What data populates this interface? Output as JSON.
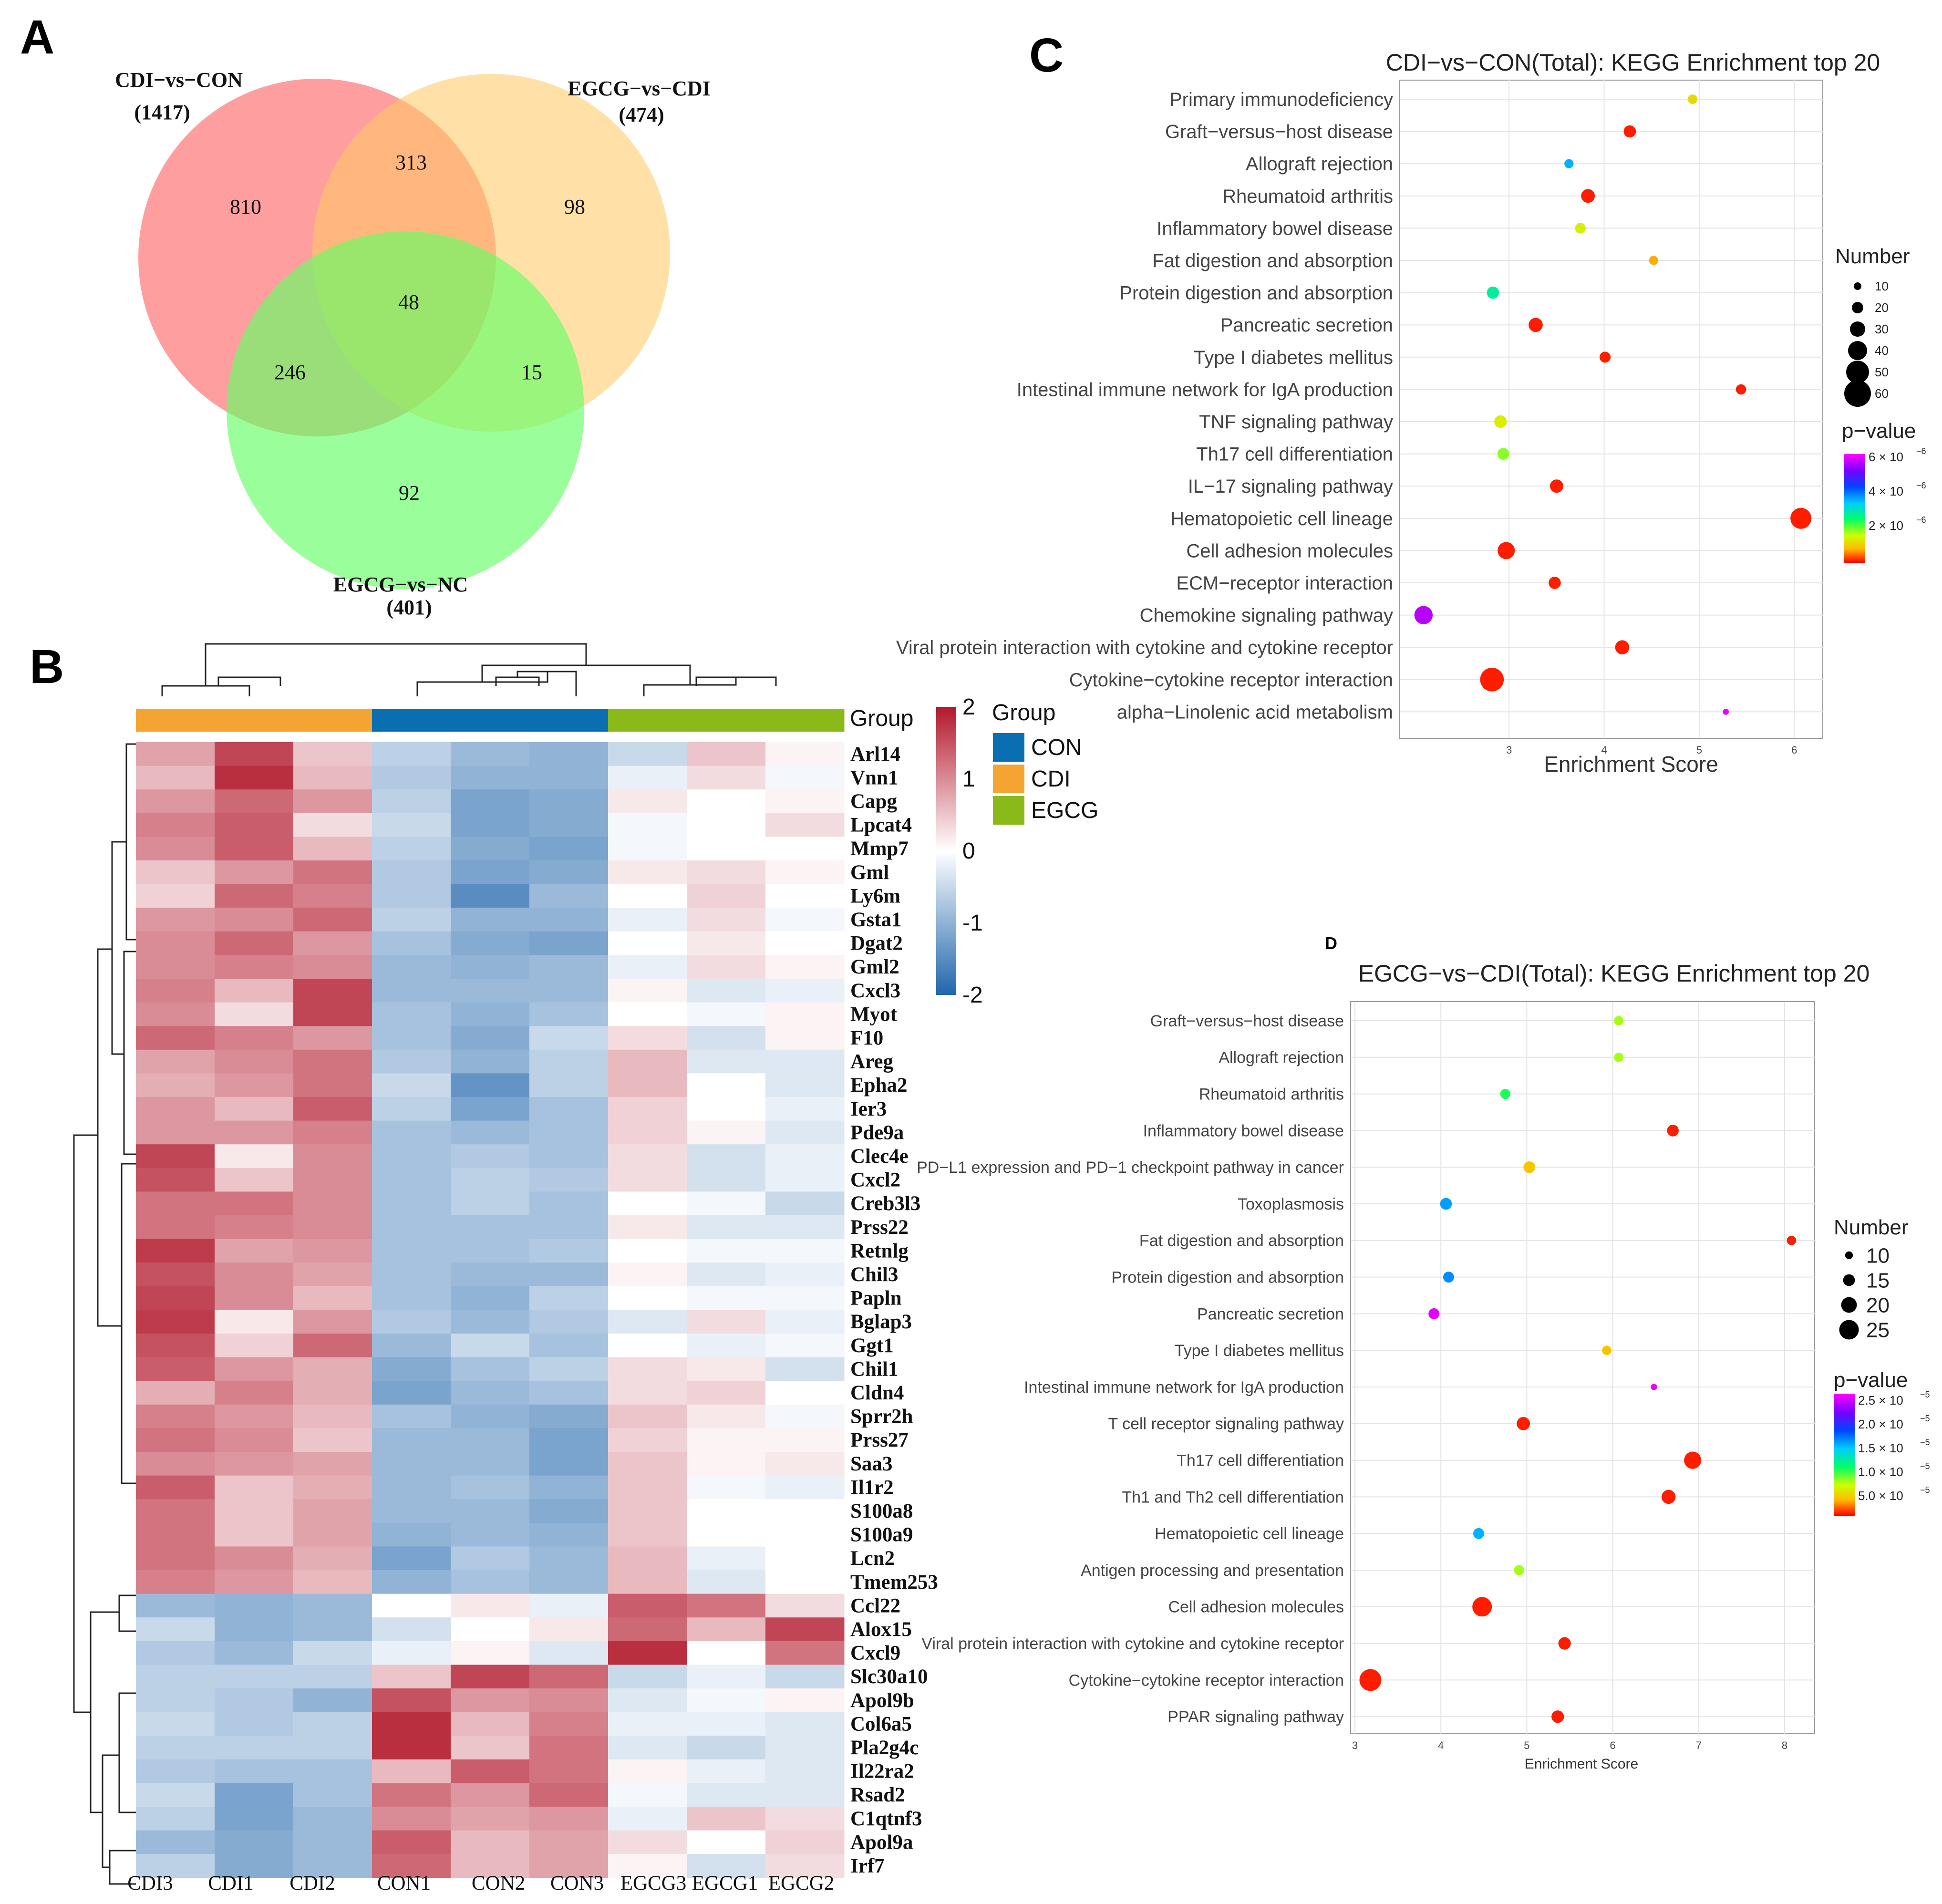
{
  "panel_labels": {
    "a": "A",
    "b": "B",
    "c": "C",
    "d": "D"
  },
  "chart_data": [
    {
      "type": "venn",
      "panel": "A",
      "sets": [
        {
          "name": "CDI−vs−CON",
          "size": "(1417)",
          "color": "#ff7070"
        },
        {
          "name": "EGCG−vs−CDI",
          "size": "(474)",
          "color": "#ffc966"
        },
        {
          "name": "EGCG−vs−NC",
          "size": "(401)",
          "color": "#66ff66"
        }
      ],
      "regions": {
        "only_a": "810",
        "a_b": "313",
        "only_b": "98",
        "a_b_c": "48",
        "a_c": "246",
        "b_c": "15",
        "only_c": "92"
      }
    },
    {
      "type": "heatmap",
      "panel": "B",
      "samples": [
        "CDI3",
        "CDI1",
        "CDI2",
        "CON1",
        "CON2",
        "CON3",
        "EGCG3",
        "EGCG1",
        "EGCG2"
      ],
      "sample_groups": [
        "CDI",
        "CDI",
        "CDI",
        "CON",
        "CON",
        "CON",
        "EGCG",
        "EGCG",
        "EGCG"
      ],
      "annotation_label": "Group",
      "legend_title": "Group",
      "groups": [
        {
          "name": "CON",
          "color": "#0a6fb0"
        },
        {
          "name": "CDI",
          "color": "#f4a531"
        },
        {
          "name": "EGCG",
          "color": "#8ab91a"
        }
      ],
      "scale": {
        "min": -2,
        "max": 2,
        "ticks": [
          "2",
          "1",
          "0",
          "-1",
          "-2"
        ]
      },
      "genes": [
        "Arl14",
        "Vnn1",
        "Capg",
        "Lpcat4",
        "Mmp7",
        "Gml",
        "Ly6m",
        "Gsta1",
        "Dgat2",
        "Gml2",
        "Cxcl3",
        "Myot",
        "F10",
        "Areg",
        "Epha2",
        "Ier3",
        "Pde9a",
        "Clec4e",
        "Cxcl2",
        "Creb3l3",
        "Prss22",
        "Retnlg",
        "Chil3",
        "Papln",
        "Bglap3",
        "Ggt1",
        "Chil1",
        "Cldn4",
        "Sprr2h",
        "Prss27",
        "Saa3",
        "Il1r2",
        "S100a8",
        "S100a9",
        "Lcn2",
        "Tmem253",
        "Ccl22",
        "Alox15",
        "Cxcl9",
        "Slc30a10",
        "Apol9b",
        "Col6a5",
        "Pla2g4c",
        "Il22ra2",
        "Rsad2",
        "C1qtnf3",
        "Apol9a",
        "Irf7"
      ],
      "values": [
        [
          0.8,
          1.6,
          0.5,
          -0.6,
          -0.9,
          -1.0,
          -0.5,
          0.5,
          0.1
        ],
        [
          0.6,
          1.8,
          0.6,
          -0.7,
          -1.0,
          -1.0,
          -0.2,
          0.3,
          -0.1
        ],
        [
          0.9,
          1.3,
          0.9,
          -0.6,
          -1.2,
          -1.1,
          0.2,
          0.0,
          0.1
        ],
        [
          1.1,
          1.4,
          0.3,
          -0.5,
          -1.2,
          -1.1,
          -0.1,
          0.0,
          0.3
        ],
        [
          1.0,
          1.4,
          0.6,
          -0.6,
          -1.1,
          -1.2,
          -0.1,
          0.0,
          0.0
        ],
        [
          0.5,
          0.9,
          1.2,
          -0.7,
          -1.2,
          -1.1,
          0.2,
          0.3,
          0.1
        ],
        [
          0.4,
          1.3,
          1.1,
          -0.7,
          -1.5,
          -0.9,
          0.0,
          0.4,
          0.0
        ],
        [
          0.9,
          1.0,
          1.3,
          -0.6,
          -1.0,
          -1.0,
          -0.2,
          0.3,
          -0.1
        ],
        [
          1.0,
          1.3,
          0.9,
          -0.8,
          -1.1,
          -1.2,
          0.0,
          0.2,
          0.0
        ],
        [
          1.0,
          1.1,
          1.0,
          -0.9,
          -1.0,
          -0.9,
          -0.2,
          0.3,
          0.1
        ],
        [
          1.1,
          0.6,
          1.6,
          -0.9,
          -0.9,
          -0.9,
          0.1,
          -0.3,
          -0.2
        ],
        [
          1.0,
          0.3,
          1.6,
          -0.8,
          -1.0,
          -0.8,
          0.0,
          -0.1,
          0.1
        ],
        [
          1.3,
          1.1,
          0.9,
          -0.8,
          -1.1,
          -0.5,
          0.3,
          -0.4,
          0.1
        ],
        [
          0.8,
          1.0,
          1.2,
          -0.7,
          -1.0,
          -0.6,
          0.6,
          -0.3,
          -0.3
        ],
        [
          0.7,
          0.9,
          1.2,
          -0.5,
          -1.4,
          -0.6,
          0.6,
          0.0,
          -0.3
        ],
        [
          0.9,
          0.6,
          1.4,
          -0.6,
          -1.2,
          -0.8,
          0.4,
          0.0,
          -0.2
        ],
        [
          0.9,
          0.9,
          1.1,
          -0.8,
          -0.9,
          -0.8,
          0.4,
          0.1,
          -0.3
        ],
        [
          1.6,
          0.2,
          1.0,
          -0.8,
          -0.7,
          -0.8,
          0.3,
          -0.4,
          -0.2
        ],
        [
          1.5,
          0.5,
          1.0,
          -0.8,
          -0.6,
          -0.7,
          0.3,
          -0.4,
          -0.2
        ],
        [
          1.2,
          1.2,
          1.0,
          -0.8,
          -0.6,
          -0.8,
          0.0,
          -0.1,
          -0.5
        ],
        [
          1.2,
          1.1,
          1.0,
          -0.8,
          -0.8,
          -0.8,
          0.2,
          -0.3,
          -0.3
        ],
        [
          1.7,
          0.8,
          0.9,
          -0.8,
          -0.8,
          -0.7,
          0.0,
          -0.1,
          -0.1
        ],
        [
          1.5,
          1.0,
          0.8,
          -0.8,
          -0.9,
          -0.9,
          0.1,
          -0.3,
          -0.2
        ],
        [
          1.6,
          1.0,
          0.6,
          -0.8,
          -1.0,
          -0.6,
          0.0,
          -0.1,
          -0.1
        ],
        [
          1.7,
          0.2,
          0.9,
          -0.7,
          -0.9,
          -0.7,
          -0.3,
          0.3,
          -0.2
        ],
        [
          1.5,
          0.4,
          1.3,
          -0.9,
          -0.5,
          -0.8,
          0.0,
          -0.2,
          -0.1
        ],
        [
          1.4,
          0.9,
          0.7,
          -1.1,
          -0.8,
          -0.6,
          0.3,
          0.2,
          -0.4
        ],
        [
          0.7,
          1.1,
          0.7,
          -1.2,
          -0.9,
          -0.8,
          0.3,
          0.4,
          0.0
        ],
        [
          1.1,
          0.9,
          0.6,
          -0.8,
          -1.0,
          -1.1,
          0.5,
          0.2,
          -0.1
        ],
        [
          1.2,
          1.0,
          0.5,
          -0.9,
          -0.9,
          -1.2,
          0.4,
          0.1,
          0.1
        ],
        [
          1.0,
          0.9,
          0.8,
          -0.9,
          -0.9,
          -1.2,
          0.5,
          0.1,
          0.2
        ],
        [
          1.4,
          0.5,
          0.7,
          -0.9,
          -0.8,
          -1.0,
          0.5,
          -0.1,
          -0.2
        ],
        [
          1.2,
          0.5,
          0.8,
          -0.9,
          -0.9,
          -1.1,
          0.5,
          0.0,
          0.0
        ],
        [
          1.2,
          0.5,
          0.8,
          -1.0,
          -0.9,
          -1.0,
          0.5,
          0.0,
          0.0
        ],
        [
          1.2,
          1.0,
          0.7,
          -1.2,
          -0.7,
          -0.9,
          0.6,
          -0.2,
          0.0
        ],
        [
          1.1,
          0.9,
          0.6,
          -1.0,
          -0.8,
          -0.9,
          0.6,
          -0.3,
          0.0
        ],
        [
          -0.9,
          -1.0,
          -0.9,
          0.0,
          0.2,
          -0.2,
          1.4,
          1.2,
          0.3
        ],
        [
          -0.5,
          -1.0,
          -0.9,
          -0.4,
          0.0,
          0.2,
          1.3,
          0.6,
          1.6
        ],
        [
          -0.7,
          -0.9,
          -0.5,
          -0.2,
          0.1,
          -0.3,
          1.8,
          0.0,
          1.2
        ],
        [
          -0.6,
          -0.6,
          -0.6,
          0.5,
          1.6,
          1.3,
          -0.5,
          -0.2,
          -0.5
        ],
        [
          -0.6,
          -0.7,
          -1.0,
          1.5,
          0.9,
          1.0,
          -0.3,
          -0.1,
          0.1
        ],
        [
          -0.5,
          -0.7,
          -0.6,
          1.8,
          0.6,
          1.1,
          -0.2,
          -0.2,
          -0.3
        ],
        [
          -0.6,
          -0.6,
          -0.6,
          1.8,
          0.5,
          1.2,
          -0.3,
          -0.5,
          -0.3
        ],
        [
          -0.7,
          -0.8,
          -0.8,
          0.6,
          1.4,
          1.2,
          0.1,
          -0.2,
          -0.3
        ],
        [
          -0.5,
          -1.2,
          -0.8,
          1.2,
          0.9,
          1.3,
          -0.1,
          -0.3,
          -0.3
        ],
        [
          -0.6,
          -1.2,
          -0.9,
          1.0,
          0.8,
          0.9,
          -0.2,
          0.5,
          0.3
        ],
        [
          -0.9,
          -1.1,
          -0.9,
          1.4,
          0.6,
          0.8,
          0.3,
          0.0,
          0.4
        ],
        [
          -0.6,
          -1.1,
          -0.9,
          1.3,
          0.6,
          0.8,
          0.1,
          -0.4,
          0.3
        ]
      ]
    },
    {
      "type": "scatter",
      "panel": "C",
      "title": "CDI−vs−CON(Total): KEGG Enrichment top 20",
      "xlabel": "Enrichment Score",
      "xlim": [
        1.85,
        6.3
      ],
      "xticks": [
        "3",
        "4",
        "5",
        "6"
      ],
      "size_legend_title": "Number",
      "size_legend": [
        "10",
        "20",
        "30",
        "40",
        "50",
        "60"
      ],
      "color_legend_title": "p−value",
      "color_legend": [
        "6 × 10",
        "4 × 10",
        "2 × 10"
      ],
      "color_legend_exp": "−6",
      "terms": [
        "Primary immunodeficiency",
        "Graft−versus−host disease",
        "Allograft rejection",
        "Rheumatoid arthritis",
        "Inflammatory bowel disease",
        "Fat digestion and absorption",
        "Protein digestion and absorption",
        "Pancreatic secretion",
        "Type I diabetes mellitus",
        "Intestinal immune network for IgA production",
        "TNF signaling pathway",
        "Th17 cell differentiation",
        "IL−17 signaling pathway",
        "Hematopoietic cell lineage",
        "Cell adhesion molecules",
        "ECM−receptor interaction",
        "Chemokine signaling pathway",
        "Viral protein interaction with cytokine and cytokine receptor",
        "Cytokine−cytokine receptor interaction",
        "alpha−Linolenic acid metabolism"
      ],
      "x": [
        4.93,
        4.27,
        3.63,
        3.83,
        3.75,
        4.52,
        2.83,
        3.28,
        4.01,
        5.44,
        2.91,
        2.94,
        3.5,
        6.07,
        2.97,
        3.48,
        2.1,
        4.19,
        2.82,
        5.28
      ],
      "count": [
        15,
        22,
        14,
        26,
        18,
        14,
        22,
        27,
        19,
        17,
        23,
        21,
        25,
        45,
        35,
        22,
        38,
        27,
        52,
        6
      ],
      "pvalue_scaled": [
        0.82,
        0.98,
        0.42,
        0.98,
        0.78,
        0.88,
        0.55,
        0.98,
        0.98,
        0.98,
        0.78,
        0.7,
        0.98,
        0.98,
        0.98,
        0.98,
        0.08,
        0.98,
        0.98,
        0.02
      ]
    },
    {
      "type": "scatter",
      "panel": "D",
      "title": "EGCG−vs−CDI(Total): KEGG Enrichment top 20",
      "xlabel": "Enrichment Score",
      "xlim": [
        2.95,
        8.35
      ],
      "xticks": [
        "3",
        "4",
        "5",
        "6",
        "7",
        "8"
      ],
      "size_legend_title": "Number",
      "size_legend": [
        "10",
        "15",
        "20",
        "25"
      ],
      "color_legend_title": "p−value",
      "color_legend": [
        "2.5 × 10",
        "2.0 × 10",
        "1.5 × 10",
        "1.0 × 10",
        "5.0 × 10"
      ],
      "color_legend_exp": "−5",
      "terms": [
        "Graft−versus−host disease",
        "Allograft rejection",
        "Rheumatoid arthritis",
        "Inflammatory bowel disease",
        "PD−L1 expression and PD−1 checkpoint pathway in cancer",
        "Toxoplasmosis",
        "Fat digestion and absorption",
        "Protein digestion and absorption",
        "Pancreatic secretion",
        "Type I diabetes mellitus",
        "Intestinal immune network for IgA production",
        "T cell receptor signaling pathway",
        "Th17 cell differentiation",
        "Th1 and Th2 cell differentiation",
        "Hematopoietic cell lineage",
        "Antigen processing and presentation",
        "Cell adhesion molecules",
        "Viral protein interaction with cytokine and cytokine receptor",
        "Cytokine−cytokine receptor interaction",
        "PPAR signaling pathway"
      ],
      "x": [
        6.07,
        6.07,
        4.75,
        6.7,
        5.03,
        4.06,
        8.08,
        4.09,
        3.92,
        5.93,
        6.48,
        4.96,
        6.93,
        6.65,
        4.44,
        4.91,
        4.48,
        5.44,
        3.18,
        5.36
      ],
      "count": [
        12,
        12,
        13,
        15,
        15,
        15,
        12,
        14,
        14,
        12,
        8,
        17,
        22,
        18,
        14,
        13,
        25,
        16,
        28,
        16
      ],
      "pvalue_scaled": [
        0.72,
        0.72,
        0.62,
        0.98,
        0.85,
        0.4,
        0.98,
        0.38,
        0.03,
        0.85,
        0.02,
        0.98,
        0.98,
        0.98,
        0.42,
        0.72,
        0.98,
        0.98,
        0.98,
        0.98
      ]
    }
  ]
}
